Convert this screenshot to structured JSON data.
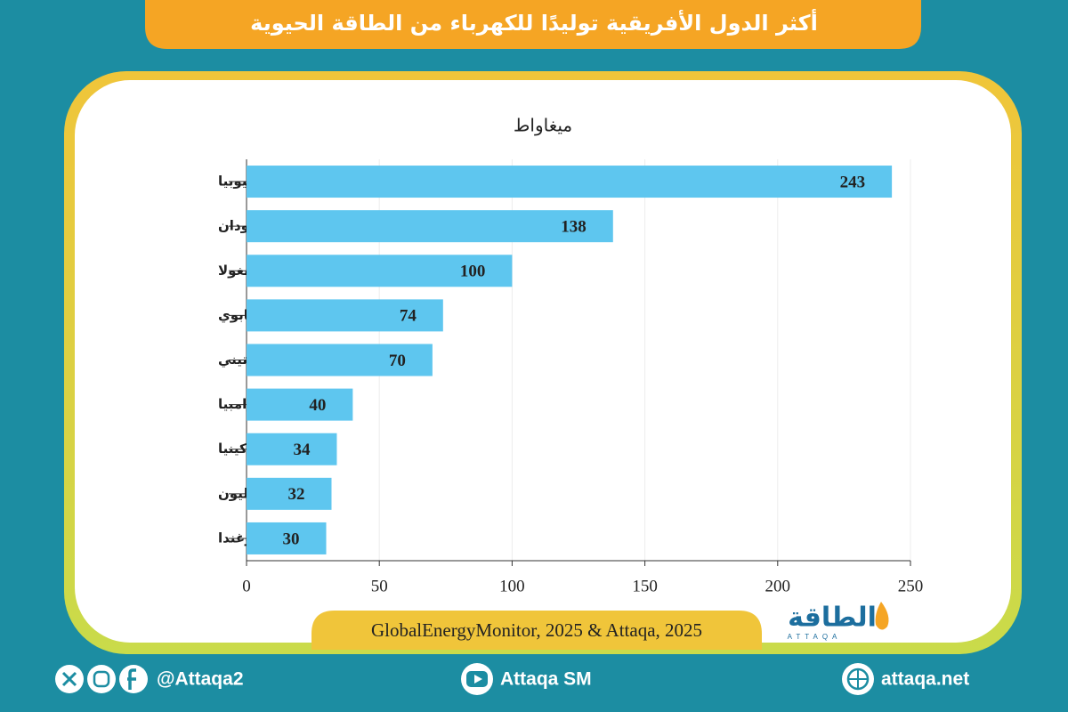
{
  "chart_data": {
    "type": "bar",
    "orientation": "horizontal",
    "title": "أكثر الدول الأفريقية توليدًا للكهرباء من الطاقة الحيوية",
    "unit_label": "ميغاواط",
    "categories": [
      "إثيوبيا",
      "السودان",
      "أنغولا",
      "زيمبابوي",
      "إسواتيني",
      "زامبيا",
      "كينيا",
      "سيراليون",
      "أوغندا"
    ],
    "values": [
      243,
      138,
      100,
      74,
      70,
      40,
      34,
      32,
      30
    ],
    "color": "#5ec6ef",
    "xlim": [
      0,
      250
    ],
    "xticks": [
      0,
      50,
      100,
      150,
      200,
      250
    ],
    "grid": true,
    "source": "GlobalEnergyMonitor, 2025 & Attaqa, 2025"
  },
  "logo": {
    "arabic": "الطاقة",
    "latin": "ATTAQA"
  },
  "footer": {
    "social": "@Attaqa2",
    "youtube": "Attaqa SM",
    "website": "attaqa.net"
  }
}
